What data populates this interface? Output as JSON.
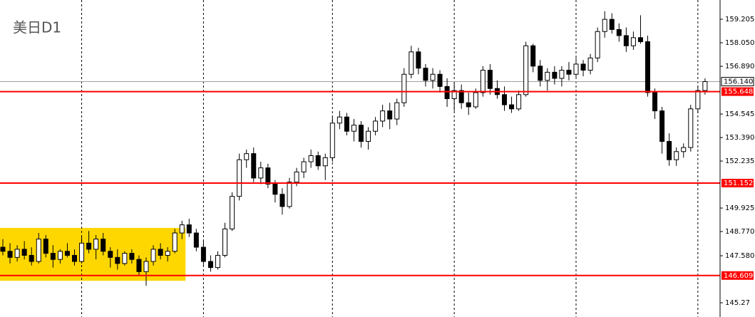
{
  "chart_data": {
    "type": "candlestick",
    "title": "美日D1",
    "ylim": [
      144.57,
      160.15
    ],
    "yticks": [
      145.27,
      {
        "value": 147.58,
        "label": "147.580"
      },
      {
        "value": 148.77,
        "label": "148.770"
      },
      149.925,
      152.235,
      {
        "value": 153.39,
        "label": "153.390"
      },
      154.545,
      {
        "value": 156.89,
        "label": "156.890"
      },
      {
        "value": 158.05,
        "label": "158.050"
      },
      159.205
    ],
    "vgrid": [
      11,
      28,
      46,
      63,
      80,
      97
    ],
    "up_color": "#ffffff",
    "down_color": "#000000",
    "outline_color": "#000000",
    "highlight_zone": {
      "start": 0,
      "end": 25,
      "top": 148.95,
      "bottom": 146.35,
      "color": "#ffd700"
    },
    "hlines": [
      {
        "value": 155.648,
        "color": "#ff0000"
      },
      {
        "value": 151.152,
        "color": "#ff0000"
      },
      {
        "value": 146.609,
        "color": "#ff0000"
      }
    ],
    "current_price": {
      "value": 156.14,
      "label": "156.140",
      "color": "#a0a0a0"
    },
    "ohlc": [
      [
        148.0,
        148.4,
        147.6,
        147.8
      ],
      [
        147.8,
        148.2,
        147.2,
        147.5
      ],
      [
        147.5,
        148.1,
        147.3,
        147.9
      ],
      [
        147.9,
        148.3,
        147.4,
        147.6
      ],
      [
        147.6,
        148.0,
        147.1,
        147.3
      ],
      [
        147.3,
        148.7,
        147.2,
        148.4
      ],
      [
        148.4,
        148.6,
        147.5,
        147.7
      ],
      [
        147.7,
        148.1,
        147.0,
        147.4
      ],
      [
        147.4,
        147.9,
        147.2,
        147.8
      ],
      [
        147.8,
        148.2,
        147.5,
        147.6
      ],
      [
        147.6,
        147.9,
        147.1,
        147.3
      ],
      [
        147.3,
        148.5,
        147.2,
        148.2
      ],
      [
        148.2,
        148.8,
        147.7,
        147.9
      ],
      [
        147.9,
        148.6,
        147.4,
        148.4
      ],
      [
        148.4,
        148.7,
        147.6,
        147.8
      ],
      [
        147.8,
        148.0,
        147.0,
        147.5
      ],
      [
        147.5,
        147.9,
        146.9,
        147.2
      ],
      [
        147.2,
        147.8,
        147.1,
        147.7
      ],
      [
        147.7,
        147.9,
        147.2,
        147.4
      ],
      [
        147.4,
        147.6,
        146.6,
        146.8
      ],
      [
        146.8,
        147.5,
        146.1,
        147.3
      ],
      [
        147.3,
        148.1,
        147.1,
        147.9
      ],
      [
        147.9,
        148.2,
        147.4,
        147.6
      ],
      [
        147.6,
        148.0,
        147.3,
        147.8
      ],
      [
        147.8,
        148.9,
        147.7,
        148.7
      ],
      [
        148.7,
        149.3,
        148.4,
        149.1
      ],
      [
        149.1,
        149.4,
        148.5,
        148.7
      ],
      [
        148.7,
        148.9,
        147.8,
        148.0
      ],
      [
        148.0,
        148.3,
        147.1,
        147.3
      ],
      [
        147.3,
        147.6,
        146.8,
        147.0
      ],
      [
        147.0,
        147.8,
        146.9,
        147.6
      ],
      [
        147.6,
        149.2,
        147.5,
        148.9
      ],
      [
        148.9,
        150.7,
        148.8,
        150.5
      ],
      [
        150.5,
        152.6,
        150.3,
        152.3
      ],
      [
        152.3,
        152.8,
        151.9,
        152.6
      ],
      [
        152.6,
        152.9,
        151.2,
        151.4
      ],
      [
        151.4,
        152.2,
        151.1,
        151.9
      ],
      [
        151.9,
        152.1,
        150.9,
        151.1
      ],
      [
        151.1,
        151.3,
        150.2,
        150.6
      ],
      [
        150.6,
        150.9,
        149.6,
        150.0
      ],
      [
        150.0,
        151.4,
        149.9,
        151.2
      ],
      [
        151.2,
        151.9,
        151.0,
        151.7
      ],
      [
        151.7,
        152.4,
        151.4,
        152.2
      ],
      [
        152.2,
        152.8,
        151.9,
        152.5
      ],
      [
        152.5,
        152.7,
        151.8,
        152.0
      ],
      [
        152.0,
        152.6,
        151.3,
        152.4
      ],
      [
        152.4,
        154.4,
        152.2,
        154.1
      ],
      [
        154.1,
        154.7,
        153.8,
        154.4
      ],
      [
        154.4,
        154.6,
        153.5,
        153.7
      ],
      [
        153.7,
        154.3,
        153.2,
        154.0
      ],
      [
        154.0,
        154.2,
        152.9,
        153.2
      ],
      [
        153.2,
        153.9,
        152.8,
        153.7
      ],
      [
        153.7,
        154.4,
        153.5,
        154.2
      ],
      [
        154.2,
        155.0,
        153.9,
        154.7
      ],
      [
        154.7,
        155.1,
        153.8,
        154.3
      ],
      [
        154.3,
        155.3,
        154.0,
        155.1
      ],
      [
        155.1,
        156.8,
        154.9,
        156.5
      ],
      [
        156.5,
        157.9,
        156.3,
        157.6
      ],
      [
        157.6,
        157.8,
        156.5,
        156.8
      ],
      [
        156.8,
        157.0,
        155.9,
        156.2
      ],
      [
        156.2,
        156.8,
        155.8,
        156.5
      ],
      [
        156.5,
        156.7,
        155.6,
        155.9
      ],
      [
        155.9,
        156.3,
        154.9,
        155.3
      ],
      [
        155.3,
        156.1,
        154.7,
        155.7
      ],
      [
        155.7,
        156.0,
        154.8,
        155.1
      ],
      [
        155.1,
        155.6,
        154.5,
        154.9
      ],
      [
        154.9,
        155.8,
        154.8,
        155.6
      ],
      [
        155.6,
        156.9,
        155.4,
        156.7
      ],
      [
        156.7,
        157.0,
        155.5,
        155.8
      ],
      [
        155.8,
        156.2,
        155.3,
        155.5
      ],
      [
        155.5,
        155.9,
        154.7,
        155.0
      ],
      [
        155.0,
        155.4,
        154.6,
        154.8
      ],
      [
        154.8,
        155.7,
        154.7,
        155.5
      ],
      [
        155.5,
        158.1,
        155.4,
        157.9
      ],
      [
        157.9,
        158.0,
        156.6,
        156.9
      ],
      [
        156.9,
        157.2,
        155.9,
        156.2
      ],
      [
        156.2,
        156.8,
        155.7,
        156.6
      ],
      [
        156.6,
        156.9,
        156.0,
        156.3
      ],
      [
        156.3,
        156.9,
        155.9,
        156.7
      ],
      [
        156.7,
        157.1,
        156.2,
        156.5
      ],
      [
        156.5,
        157.3,
        156.3,
        157.0
      ],
      [
        157.0,
        157.2,
        156.4,
        156.7
      ],
      [
        156.7,
        157.5,
        156.5,
        157.3
      ],
      [
        157.3,
        158.8,
        157.1,
        158.6
      ],
      [
        158.6,
        159.6,
        158.3,
        159.2
      ],
      [
        159.2,
        159.5,
        158.5,
        158.7
      ],
      [
        158.7,
        159.0,
        158.1,
        158.4
      ],
      [
        158.4,
        158.8,
        157.6,
        157.9
      ],
      [
        157.9,
        158.6,
        157.7,
        158.3
      ],
      [
        158.3,
        159.4,
        158.0,
        158.1
      ],
      [
        158.1,
        158.4,
        155.4,
        155.6
      ],
      [
        155.6,
        155.8,
        154.3,
        154.7
      ],
      [
        154.7,
        154.9,
        152.6,
        153.2
      ],
      [
        153.2,
        153.6,
        152.0,
        152.3
      ],
      [
        152.3,
        152.9,
        152.0,
        152.7
      ],
      [
        152.7,
        153.1,
        152.4,
        152.9
      ],
      [
        152.9,
        155.0,
        152.7,
        154.8
      ],
      [
        154.8,
        155.9,
        154.6,
        155.7
      ],
      [
        155.7,
        156.3,
        155.5,
        156.14
      ]
    ]
  }
}
